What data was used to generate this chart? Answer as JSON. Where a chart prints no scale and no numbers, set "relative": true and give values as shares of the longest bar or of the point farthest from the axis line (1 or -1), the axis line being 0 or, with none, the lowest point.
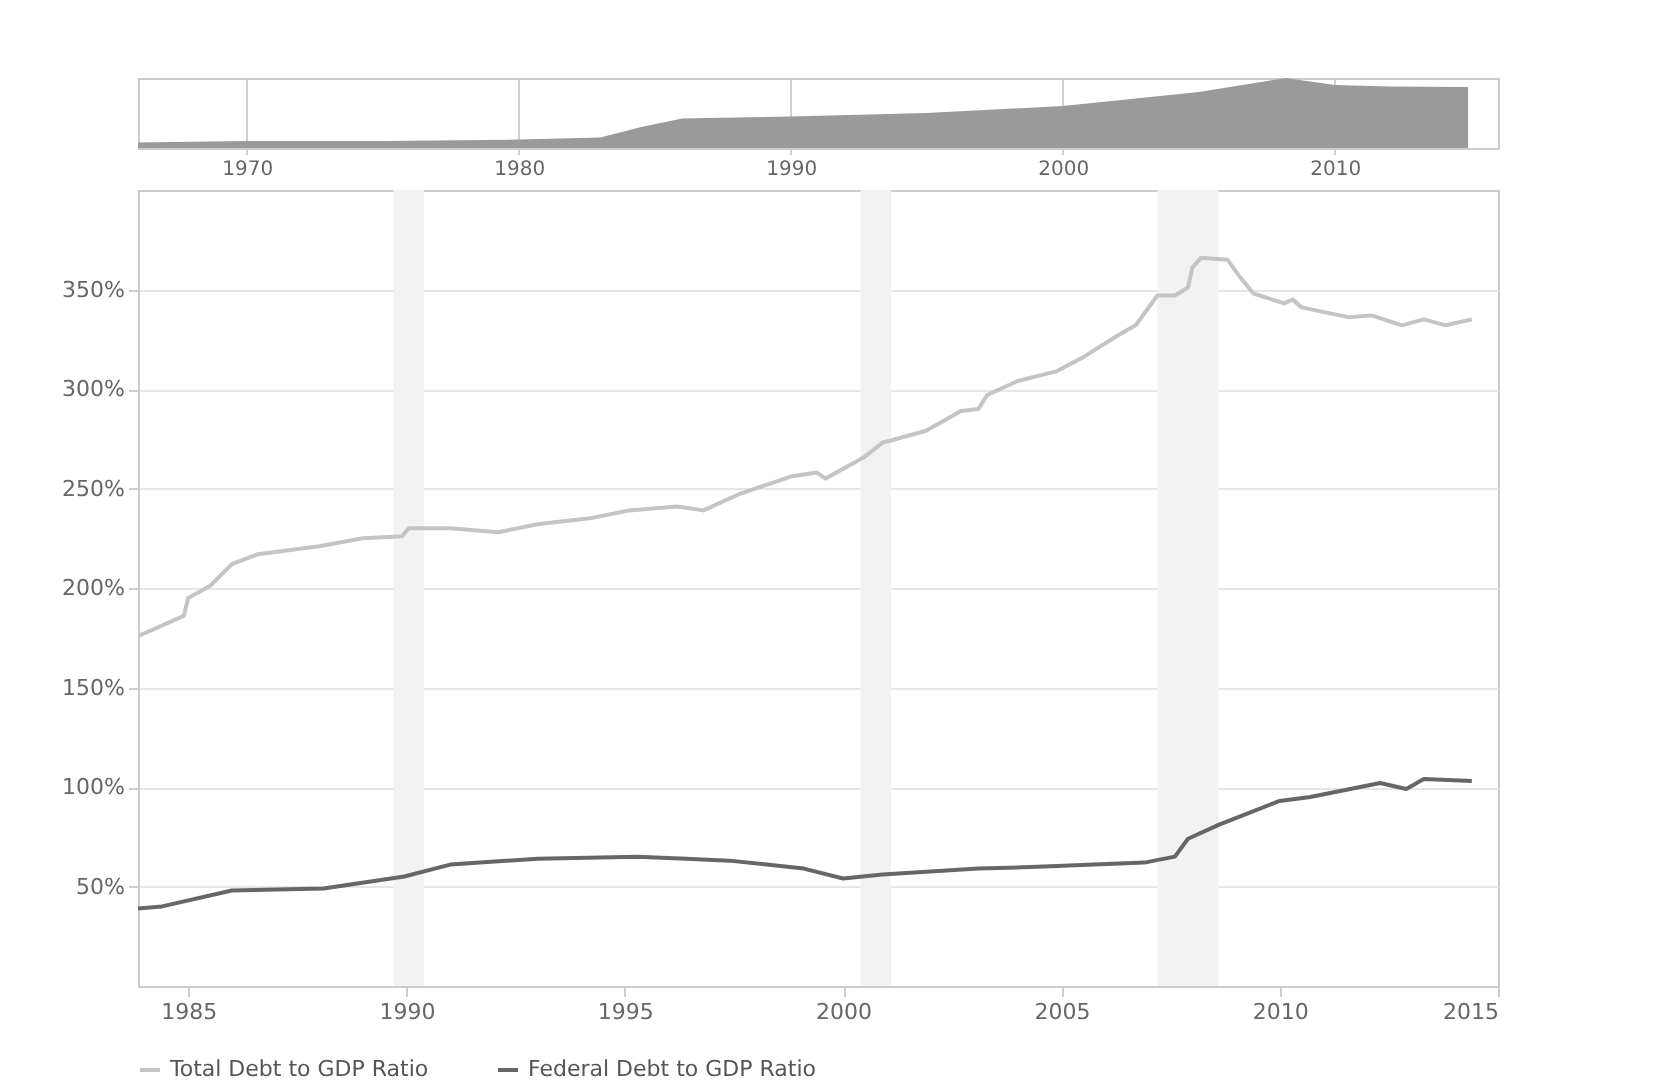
{
  "chart_data": [
    {
      "type": "area",
      "relative": true,
      "color": "#9a9a9a",
      "xlim": [
        1966,
        2016
      ],
      "xticks": [
        1970,
        1980,
        1990,
        2000,
        2010
      ],
      "grid": "x",
      "x": [
        1966,
        1970,
        1975,
        1980,
        1983,
        1984.5,
        1986,
        1990,
        1995,
        2000,
        2005,
        2008.2,
        2010,
        2012,
        2014.9
      ],
      "values": [
        0.08,
        0.1,
        0.1,
        0.12,
        0.15,
        0.3,
        0.42,
        0.45,
        0.5,
        0.6,
        0.8,
        1.0,
        0.9,
        0.88,
        0.87
      ]
    },
    {
      "type": "line",
      "xlim": [
        1983.85,
        2015
      ],
      "xticks": [
        1985,
        1990,
        1995,
        2000,
        2005,
        2010,
        2015
      ],
      "ylim": [
        0,
        400
      ],
      "yticks": [
        {
          "value": 50,
          "label": "50%"
        },
        {
          "value": 100,
          "label": "100%"
        },
        {
          "value": 150,
          "label": "150%"
        },
        {
          "value": 200,
          "label": "200%"
        },
        {
          "value": 250,
          "label": "250%"
        },
        {
          "value": 300,
          "label": "300%"
        },
        {
          "value": 350,
          "label": "350%"
        }
      ],
      "grid": "y",
      "legend": "bottom",
      "line_style": "solid",
      "bands": [
        {
          "axis": "x",
          "from": 1989.7,
          "to": 1990.4,
          "color": "#f2f2f2"
        },
        {
          "axis": "x",
          "from": 2000.4,
          "to": 2001.1,
          "color": "#f2f2f2"
        },
        {
          "axis": "x",
          "from": 2007.2,
          "to": 2008.6,
          "color": "#f2f2f2"
        }
      ],
      "series": [
        {
          "name": "Total Debt to GDP Ratio",
          "color": "#c4c4c4",
          "x": [
            1983.87,
            1984.9,
            1985.0,
            1985.5,
            1986.0,
            1986.6,
            1988.0,
            1989.0,
            1989.9,
            1990.05,
            1991.0,
            1992.1,
            1993.0,
            1994.2,
            1995.1,
            1996.2,
            1996.8,
            1997.6,
            1998.8,
            1999.4,
            1999.6,
            2000.5,
            2000.9,
            2001.9,
            2002.7,
            2003.1,
            2003.3,
            2004.0,
            2004.9,
            2005.5,
            2006.3,
            2006.7,
            2007.2,
            2007.6,
            2007.9,
            2008.0,
            2008.2,
            2008.8,
            2009.1,
            2009.4,
            2010.1,
            2010.3,
            2010.5,
            2011.6,
            2012.1,
            2012.8,
            2013.3,
            2013.8,
            2014.4
          ],
          "values": [
            176,
            186,
            195,
            201,
            212,
            217,
            221,
            225,
            226,
            230,
            230,
            228,
            232,
            235,
            239,
            241,
            239,
            247,
            256,
            258,
            255,
            266,
            273,
            279,
            289,
            290,
            297,
            304,
            309,
            316,
            327,
            332,
            347,
            347,
            351,
            361,
            366,
            365,
            356,
            348,
            343,
            345,
            341,
            336,
            337,
            332,
            335,
            332,
            335
          ]
        },
        {
          "name": "Federal Debt to GDP Ratio",
          "color": "#666666",
          "x": [
            1983.85,
            1984.4,
            1986.0,
            1988.1,
            1989.95,
            1991.0,
            1993.0,
            1995.3,
            1996.4,
            1997.4,
            1999.1,
            2000.0,
            2000.9,
            2003.1,
            2004.6,
            2006.9,
            2007.6,
            2007.9,
            2008.6,
            2010.0,
            2010.7,
            2012.3,
            2012.9,
            2013.3,
            2014.4
          ],
          "values": [
            39,
            40,
            48,
            49,
            55,
            61,
            64,
            65,
            64,
            63,
            59,
            54,
            56,
            59,
            60,
            62,
            65,
            74,
            81,
            93,
            95,
            102,
            99,
            104,
            103
          ]
        }
      ]
    }
  ]
}
